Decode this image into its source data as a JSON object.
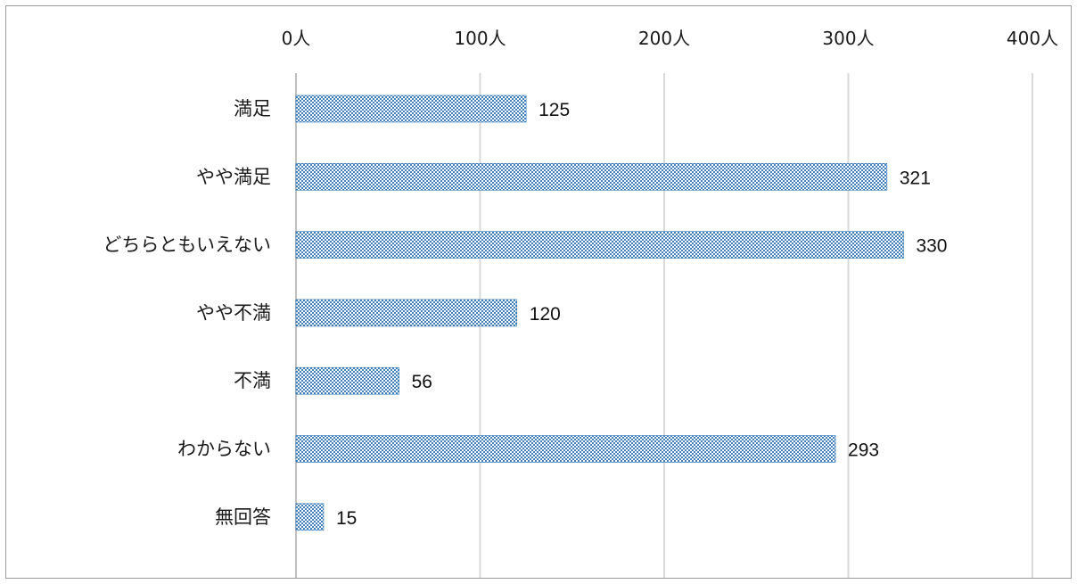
{
  "chart_data": {
    "type": "bar",
    "orientation": "horizontal",
    "categories": [
      "満足",
      "やや満足",
      "どちらともいえない",
      "やや不満",
      "不満",
      "わからない",
      "無回答"
    ],
    "values": [
      125,
      321,
      330,
      120,
      56,
      293,
      15
    ],
    "xlim": [
      0,
      400
    ],
    "x_ticks": [
      0,
      100,
      200,
      300,
      400
    ],
    "x_tick_labels": [
      "0人",
      "100人",
      "200人",
      "300人",
      "400人"
    ],
    "x_axis_position": "top",
    "grid": true,
    "legend": "none",
    "bar_color": "#2e75b6",
    "bar_pattern": "dotted",
    "data_labels": [
      "125",
      "321",
      "330",
      "120",
      "56",
      "293",
      "15"
    ]
  }
}
